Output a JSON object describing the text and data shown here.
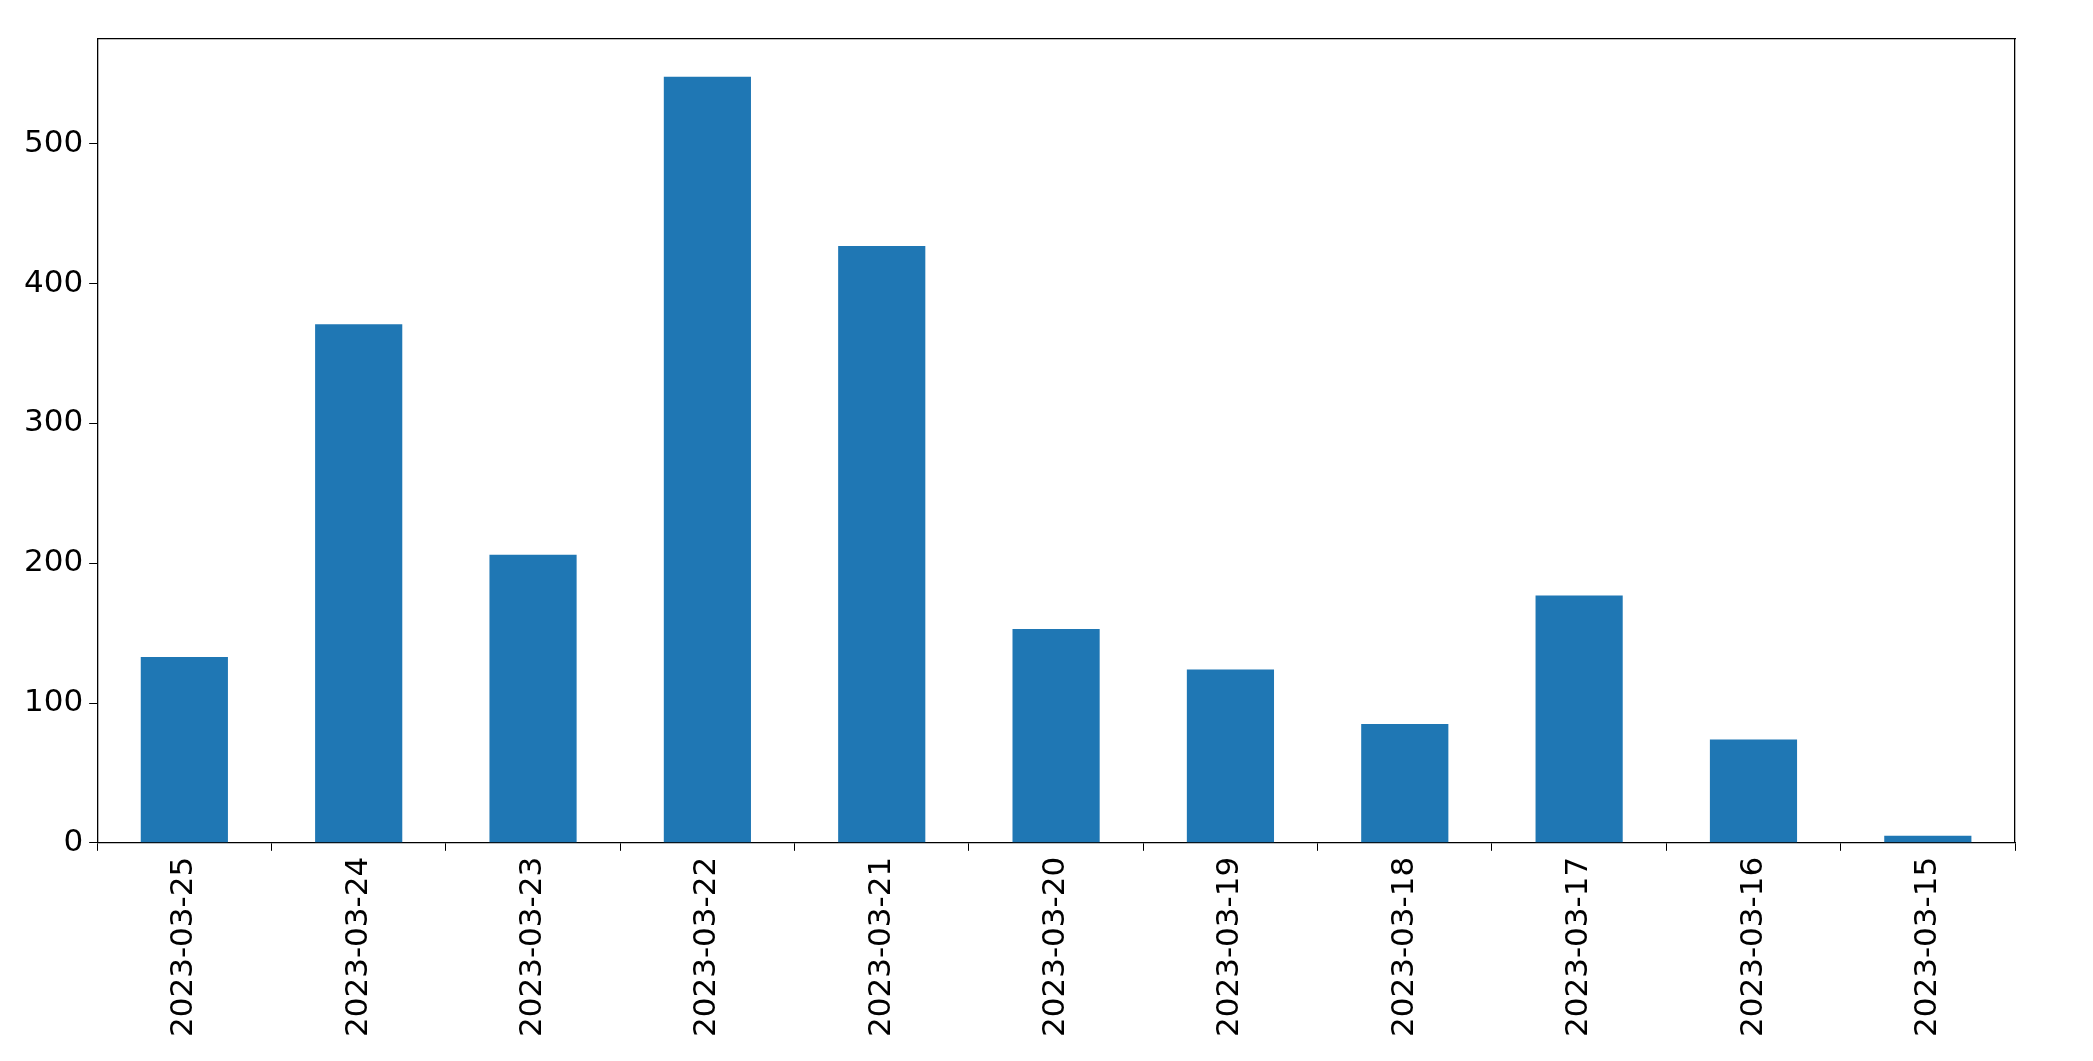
{
  "chart_data": {
    "type": "bar",
    "categories": [
      "2023-03-25",
      "2023-03-24",
      "2023-03-23",
      "2023-03-22",
      "2023-03-21",
      "2023-03-20",
      "2023-03-19",
      "2023-03-18",
      "2023-03-17",
      "2023-03-16",
      "2023-03-15"
    ],
    "values": [
      133,
      371,
      206,
      548,
      427,
      153,
      124,
      85,
      177,
      74,
      5
    ],
    "color": "#1f77b4",
    "ylim": [
      0,
      575
    ],
    "yticks": [
      0,
      100,
      200,
      300,
      400,
      500
    ],
    "grid": false,
    "legend": false
  }
}
